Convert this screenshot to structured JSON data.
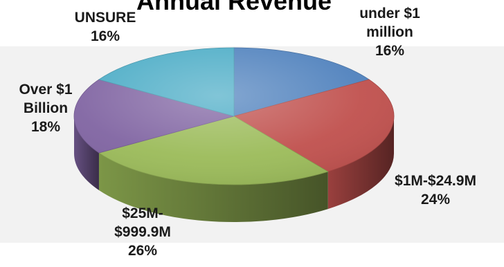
{
  "chart_data": {
    "type": "pie",
    "title": "Annual Revenue",
    "slices": [
      {
        "label": "under $1 million",
        "label_lines": [
          "under $1",
          "million",
          "16%"
        ],
        "value": 16,
        "color": "#4F81BD"
      },
      {
        "label": "$1M-$24.9M",
        "label_lines": [
          "$1M-$24.9M",
          "24%"
        ],
        "value": 24,
        "color": "#C0504D"
      },
      {
        "label": "$25M-$999.9M",
        "label_lines": [
          "$25M-",
          "$999.9M",
          "26%"
        ],
        "value": 26,
        "color": "#9BBB59"
      },
      {
        "label": "Over $1 Billion",
        "label_lines": [
          "Over $1",
          "Billion",
          "18%"
        ],
        "value": 18,
        "color": "#8064A2"
      },
      {
        "label": "UNSURE",
        "label_lines": [
          "UNSURE",
          "16%"
        ],
        "value": 16,
        "color": "#4BACC6"
      }
    ],
    "legend": "none",
    "three_d": true
  }
}
